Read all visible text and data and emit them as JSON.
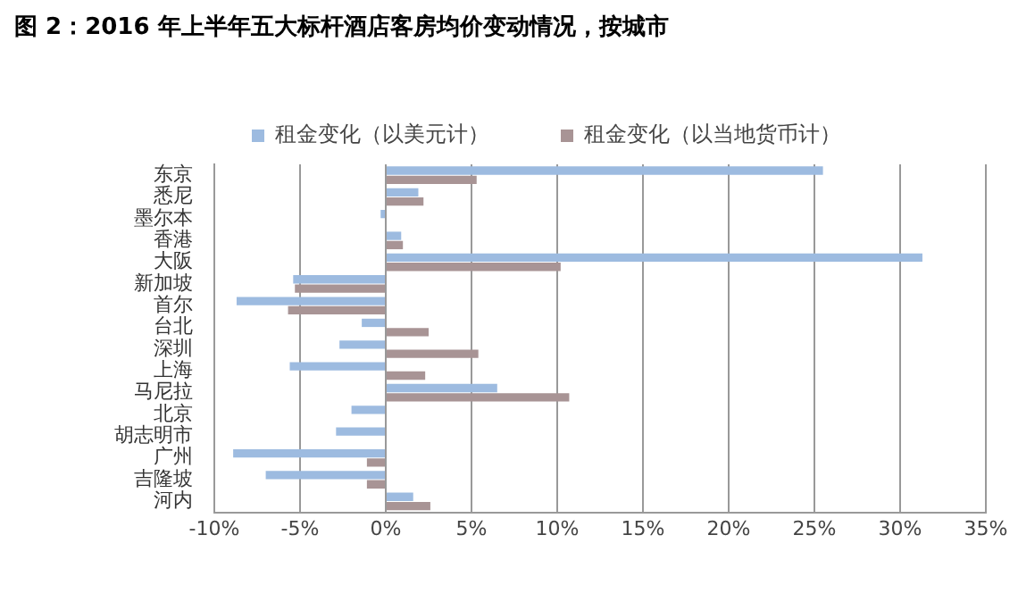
{
  "chart_data": {
    "type": "bar",
    "orientation": "horizontal",
    "title": "图 2：2016 年上半年五大标杆酒店客房均价变动情况，按城市",
    "categories": [
      "东京",
      "悉尼",
      "墨尔本",
      "香港",
      "大阪",
      "新加坡",
      "首尔",
      "台北",
      "深圳",
      "上海",
      "马尼拉",
      "北京",
      "胡志明市",
      "广州",
      "吉隆坡",
      "河内"
    ],
    "series": [
      {
        "name": "租金变化（以美元计）",
        "color": "#9dbbe0",
        "values": [
          25.5,
          1.9,
          -0.3,
          0.9,
          31.3,
          -5.4,
          -8.7,
          -1.4,
          -2.7,
          -5.6,
          6.5,
          -2.0,
          -2.9,
          -8.9,
          -7.0,
          1.6
        ]
      },
      {
        "name": "租金变化（以当地货币计）",
        "color": "#a89495",
        "values": [
          5.3,
          2.2,
          0,
          1.0,
          10.2,
          -5.3,
          -5.7,
          2.5,
          5.4,
          2.3,
          10.7,
          0,
          0,
          -1.1,
          -1.1,
          2.6
        ]
      }
    ],
    "xlim": [
      -10,
      35
    ],
    "xticks": [
      {
        "value": -10,
        "label": "-10%"
      },
      {
        "value": -5,
        "label": "-5%"
      },
      {
        "value": 0,
        "label": "0%"
      },
      {
        "value": 5,
        "label": "5%"
      },
      {
        "value": 10,
        "label": "10%"
      },
      {
        "value": 15,
        "label": "15%"
      },
      {
        "value": 20,
        "label": "20%"
      },
      {
        "value": 25,
        "label": "25%"
      },
      {
        "value": 30,
        "label": "30%"
      },
      {
        "value": 35,
        "label": "35%"
      }
    ],
    "grid": "x",
    "legend": "top"
  }
}
